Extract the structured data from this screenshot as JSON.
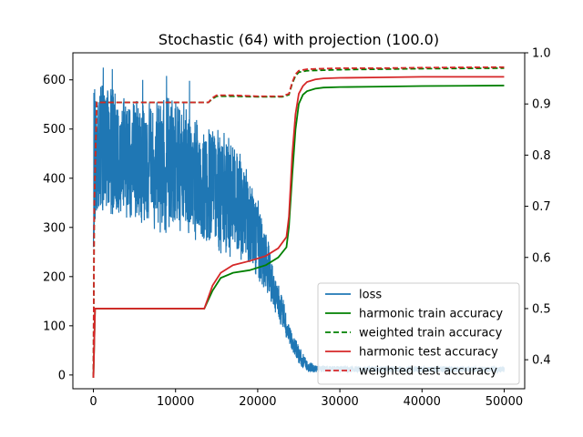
{
  "chart_data": {
    "type": "line",
    "title": "Stochastic (64) with projection (100.0)",
    "xlabel": "",
    "ylabel_left": "",
    "ylabel_right": "",
    "xlim": [
      -2500,
      52500
    ],
    "ylim_left": [
      -28,
      655
    ],
    "ylim_right": [
      0.3433,
      1.0
    ],
    "x_ticks": [
      0,
      10000,
      20000,
      30000,
      40000,
      50000
    ],
    "x_tick_labels": [
      "0",
      "10000",
      "20000",
      "30000",
      "40000",
      "50000"
    ],
    "y_left_ticks": [
      0,
      100,
      200,
      300,
      400,
      500,
      600
    ],
    "y_left_tick_labels": [
      "0",
      "100",
      "200",
      "300",
      "400",
      "500",
      "600"
    ],
    "y_right_ticks": [
      0.4,
      0.5,
      0.6,
      0.7,
      0.8,
      0.9,
      1.0
    ],
    "y_right_tick_labels": [
      "0.4",
      "0.5",
      "0.6",
      "0.7",
      "0.8",
      "0.9",
      "1.0"
    ],
    "grid": false,
    "legend_position": "lower-right",
    "series": [
      {
        "name": "loss",
        "axis": "left",
        "color": "#1f77b4",
        "style": "solid",
        "kind": "noisy-band",
        "envelope": {
          "x": [
            0,
            1000,
            3000,
            6000,
            9000,
            11000,
            12500,
            14000,
            16000,
            17500,
            19000,
            20000,
            21000,
            22000,
            23000,
            24000,
            25000,
            26000,
            27000,
            28000,
            30000,
            35000,
            40000,
            45000,
            50000
          ],
          "lower": [
            260,
            330,
            320,
            300,
            280,
            275,
            270,
            260,
            240,
            230,
            215,
            195,
            170,
            130,
            90,
            55,
            20,
            5,
            5,
            5,
            5,
            5,
            5,
            5,
            5
          ],
          "upper": [
            600,
            600,
            580,
            560,
            570,
            555,
            520,
            510,
            495,
            470,
            410,
            360,
            300,
            210,
            160,
            100,
            60,
            30,
            20,
            20,
            18,
            18,
            18,
            18,
            18
          ]
        },
        "spikes": [
          {
            "x": 1200,
            "y": 625
          },
          {
            "x": 2300,
            "y": 622
          },
          {
            "x": 6000,
            "y": 600
          },
          {
            "x": 8900,
            "y": 608
          },
          {
            "x": 11700,
            "y": 598
          }
        ]
      },
      {
        "name": "harmonic train accuracy",
        "axis": "right",
        "color": "#008000",
        "style": "solid",
        "x": [
          0,
          200,
          13000,
          13500,
          14500,
          15500,
          17000,
          19000,
          21000,
          22500,
          23500,
          23800,
          24200,
          24600,
          25000,
          25500,
          26000,
          27000,
          28000,
          30000,
          35000,
          40000,
          50000
        ],
        "y": [
          0.365,
          0.5,
          0.5,
          0.5,
          0.535,
          0.56,
          0.57,
          0.575,
          0.585,
          0.6,
          0.62,
          0.66,
          0.76,
          0.85,
          0.9,
          0.918,
          0.925,
          0.93,
          0.932,
          0.933,
          0.934,
          0.935,
          0.936
        ]
      },
      {
        "name": "weighted train accuracy",
        "axis": "right",
        "color": "#008000",
        "style": "dashed",
        "x": [
          0,
          100,
          400,
          14000,
          14500,
          15000,
          17000,
          20000,
          23000,
          23800,
          24200,
          24600,
          25000,
          26000,
          28000,
          30000,
          35000,
          40000,
          50000
        ],
        "y": [
          0.365,
          0.7,
          0.903,
          0.903,
          0.91,
          0.915,
          0.915,
          0.914,
          0.914,
          0.918,
          0.94,
          0.955,
          0.962,
          0.965,
          0.966,
          0.967,
          0.968,
          0.969,
          0.97
        ]
      },
      {
        "name": "harmonic test accuracy",
        "axis": "right",
        "color": "#d62728",
        "style": "solid",
        "x": [
          0,
          200,
          13000,
          13500,
          14500,
          15500,
          17000,
          19000,
          21000,
          22500,
          23500,
          23800,
          24200,
          24600,
          25000,
          25500,
          26000,
          27000,
          28000,
          30000,
          35000,
          40000,
          50000
        ],
        "y": [
          0.365,
          0.5,
          0.5,
          0.5,
          0.545,
          0.57,
          0.585,
          0.593,
          0.603,
          0.618,
          0.64,
          0.68,
          0.8,
          0.88,
          0.92,
          0.935,
          0.943,
          0.948,
          0.95,
          0.951,
          0.952,
          0.953,
          0.953
        ]
      },
      {
        "name": "weighted test accuracy",
        "axis": "right",
        "color": "#d62728",
        "style": "dashed",
        "x": [
          0,
          100,
          400,
          14000,
          14500,
          15000,
          17000,
          20000,
          23000,
          23800,
          24200,
          24600,
          25000,
          26000,
          28000,
          30000,
          35000,
          40000,
          50000
        ],
        "y": [
          0.365,
          0.7,
          0.903,
          0.903,
          0.912,
          0.917,
          0.917,
          0.915,
          0.915,
          0.92,
          0.942,
          0.958,
          0.965,
          0.968,
          0.969,
          0.97,
          0.97,
          0.971,
          0.972
        ]
      }
    ]
  }
}
